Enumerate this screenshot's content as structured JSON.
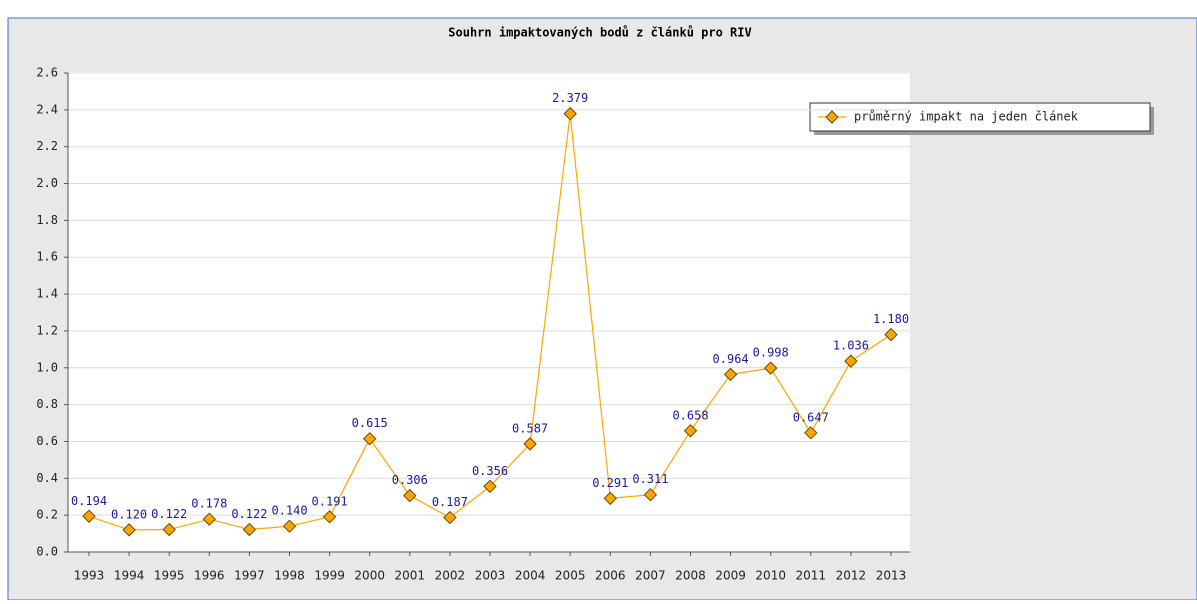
{
  "chart_data": {
    "type": "line",
    "title": "Souhrn impaktovaných bodů z článků pro RIV",
    "categories": [
      "1993",
      "1994",
      "1995",
      "1996",
      "1997",
      "1998",
      "1999",
      "2000",
      "2001",
      "2002",
      "2003",
      "2004",
      "2005",
      "2006",
      "2007",
      "2008",
      "2009",
      "2010",
      "2011",
      "2012",
      "2013"
    ],
    "series": [
      {
        "name": "průměrný impakt na jeden článek",
        "color": "#ffa500",
        "values": [
          0.194,
          0.12,
          0.122,
          0.178,
          0.122,
          0.14,
          0.191,
          0.615,
          0.306,
          0.187,
          0.356,
          0.587,
          2.379,
          0.291,
          0.311,
          0.658,
          0.964,
          0.998,
          0.647,
          1.036,
          1.18
        ],
        "value_labels": [
          "0.194",
          "0.120",
          "0.122",
          "0.178",
          "0.122",
          "0.140",
          "0.191",
          "0.615",
          "0.306",
          "0.187",
          "0.356",
          "0.587",
          "2.379",
          "0.291",
          "0.311",
          "0.658",
          "0.964",
          "0.998",
          "0.647",
          "1.036",
          "1.180"
        ]
      }
    ],
    "ylim": [
      0,
      2.6
    ],
    "yticks": [
      {
        "value": 0,
        "label": "0.0"
      },
      0.2,
      0.4,
      0.6,
      0.8,
      {
        "value": 1,
        "label": "1.0"
      },
      1.2,
      1.4,
      1.6,
      1.8,
      {
        "value": 2,
        "label": "2.0"
      },
      2.2,
      2.4,
      2.6
    ],
    "grid": true,
    "legend": "upper right"
  }
}
